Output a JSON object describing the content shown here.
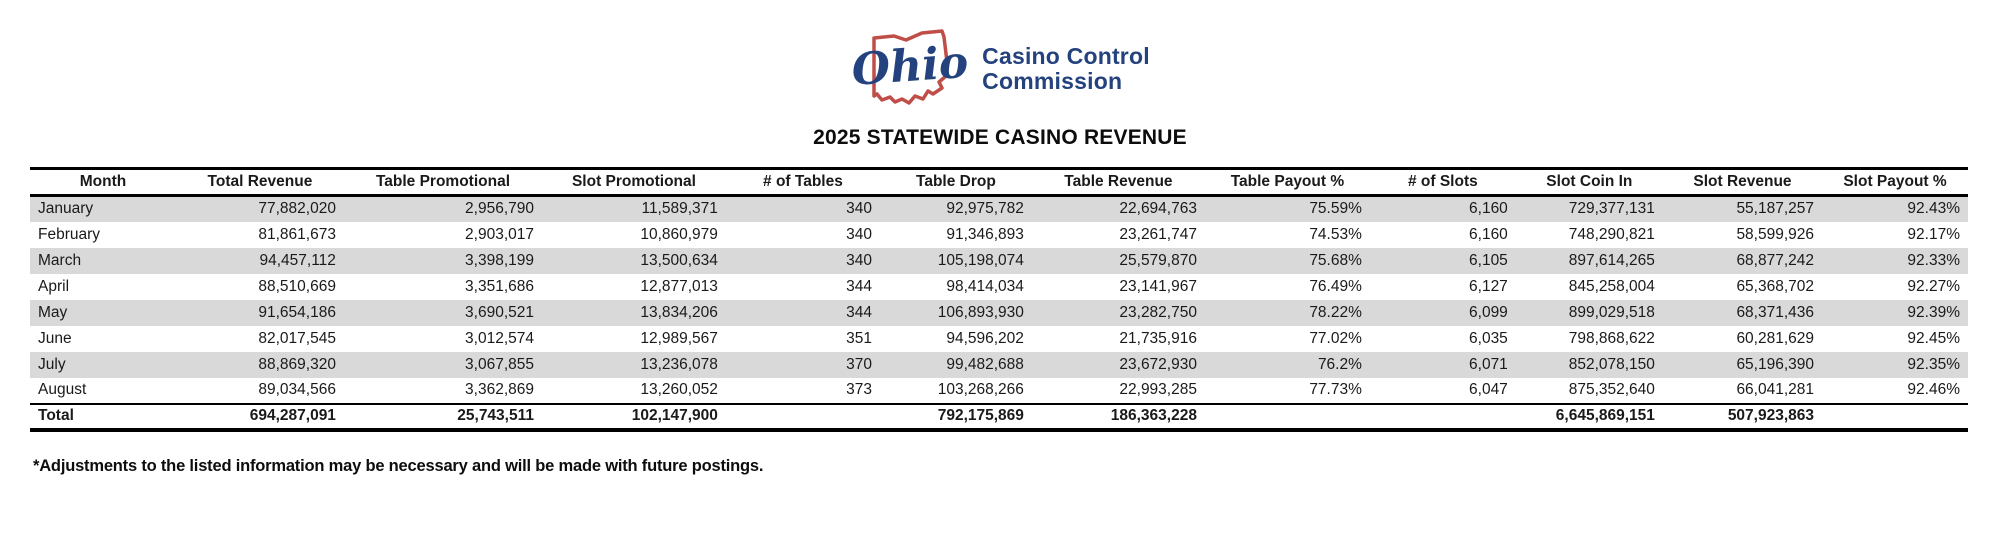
{
  "logo": {
    "ohio_script": "Ohio",
    "org_line1": "Casino Control",
    "org_line2": "Commission",
    "colors": {
      "state_outline_red": "#bf4e49",
      "navy": "#24427e"
    }
  },
  "title": "2025 STATEWIDE CASINO REVENUE",
  "table": {
    "headers": [
      "Month",
      "Total Revenue",
      "Table Promotional",
      "Slot Promotional",
      "# of Tables",
      "Table Drop",
      "Table Revenue",
      "Table Payout %",
      "# of Slots",
      "Slot Coin In",
      "Slot Revenue",
      "Slot Payout %"
    ],
    "rows": [
      [
        "January",
        "77,882,020",
        "2,956,790",
        "11,589,371",
        "340",
        "92,975,782",
        "22,694,763",
        "75.59%",
        "6,160",
        "729,377,131",
        "55,187,257",
        "92.43%"
      ],
      [
        "February",
        "81,861,673",
        "2,903,017",
        "10,860,979",
        "340",
        "91,346,893",
        "23,261,747",
        "74.53%",
        "6,160",
        "748,290,821",
        "58,599,926",
        "92.17%"
      ],
      [
        "March",
        "94,457,112",
        "3,398,199",
        "13,500,634",
        "340",
        "105,198,074",
        "25,579,870",
        "75.68%",
        "6,105",
        "897,614,265",
        "68,877,242",
        "92.33%"
      ],
      [
        "April",
        "88,510,669",
        "3,351,686",
        "12,877,013",
        "344",
        "98,414,034",
        "23,141,967",
        "76.49%",
        "6,127",
        "845,258,004",
        "65,368,702",
        "92.27%"
      ],
      [
        "May",
        "91,654,186",
        "3,690,521",
        "13,834,206",
        "344",
        "106,893,930",
        "23,282,750",
        "78.22%",
        "6,099",
        "899,029,518",
        "68,371,436",
        "92.39%"
      ],
      [
        "June",
        "82,017,545",
        "3,012,574",
        "12,989,567",
        "351",
        "94,596,202",
        "21,735,916",
        "77.02%",
        "6,035",
        "798,868,622",
        "60,281,629",
        "92.45%"
      ],
      [
        "July",
        "88,869,320",
        "3,067,855",
        "13,236,078",
        "370",
        "99,482,688",
        "23,672,930",
        "76.2%",
        "6,071",
        "852,078,150",
        "65,196,390",
        "92.35%"
      ],
      [
        "August",
        "89,034,566",
        "3,362,869",
        "13,260,052",
        "373",
        "103,268,266",
        "22,993,285",
        "77.73%",
        "6,047",
        "875,352,640",
        "66,041,281",
        "92.46%"
      ]
    ],
    "total_row": [
      "Total",
      "694,287,091",
      "25,743,511",
      "102,147,900",
      "",
      "792,175,869",
      "186,363,228",
      "",
      "",
      "6,645,869,151",
      "507,923,863",
      ""
    ],
    "striped_row_color": "#d9d9d9"
  },
  "footnote": "*Adjustments to the listed information may be necessary and will be made with future postings."
}
